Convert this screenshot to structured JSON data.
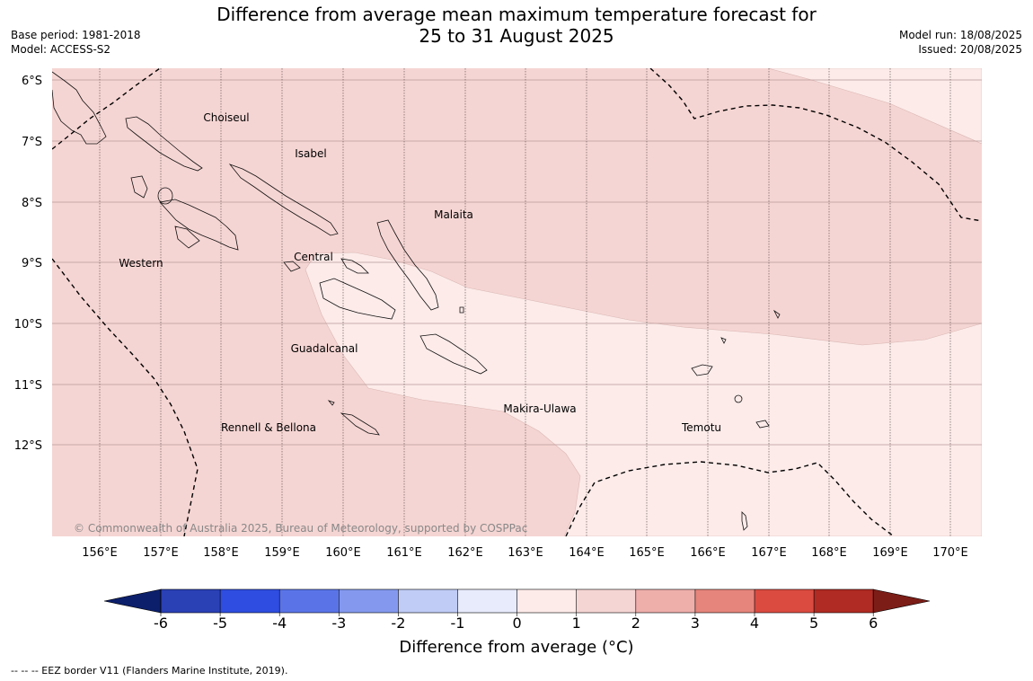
{
  "title": {
    "line1": "Difference from average mean maximum temperature forecast for",
    "line2": "25 to 31 August 2025"
  },
  "meta_left": {
    "base_period": "Base period: 1981-2018",
    "model": "Model: ACCESS-S2"
  },
  "meta_right": {
    "model_run": "Model run: 18/08/2025",
    "issued": "Issued: 20/08/2025"
  },
  "map": {
    "lat_labels": [
      "6°S",
      "7°S",
      "8°S",
      "9°S",
      "10°S",
      "11°S",
      "12°S"
    ],
    "lon_labels": [
      "156°E",
      "157°E",
      "158°E",
      "159°E",
      "160°E",
      "161°E",
      "162°E",
      "163°E",
      "164°E",
      "165°E",
      "166°E",
      "167°E",
      "168°E",
      "169°E",
      "170°E"
    ],
    "regions": [
      "Choiseul",
      "Isabel",
      "Malaita",
      "Western",
      "Central",
      "Guadalcanal",
      "Rennell & Bellona",
      "Makira-Ulawa",
      "Temotu"
    ],
    "copyright": "© Commonwealth of Australia 2025, Bureau of Meteorology, supported by COSPPac",
    "fill_colors": {
      "0_to_1": "#fcebe9",
      "1_to_2": "#f5d5d3"
    }
  },
  "colorbar": {
    "ticks": [
      "-6",
      "-5",
      "-4",
      "-3",
      "-2",
      "-1",
      "0",
      "1",
      "2",
      "3",
      "4",
      "5",
      "6"
    ],
    "colors": [
      "#0b1f6b",
      "#2a40b5",
      "#2f4de0",
      "#5a74e8",
      "#8499ee",
      "#c0cbf6",
      "#e7ebfb",
      "#fcebe9",
      "#f5d5d3",
      "#eeaeaa",
      "#e6857c",
      "#db4b40",
      "#b02b23",
      "#7c1d17"
    ],
    "label": "Difference from average (°C)"
  },
  "footnote": "--  --  -- EEZ border V11 (Flanders Marine Institute, 2019)."
}
